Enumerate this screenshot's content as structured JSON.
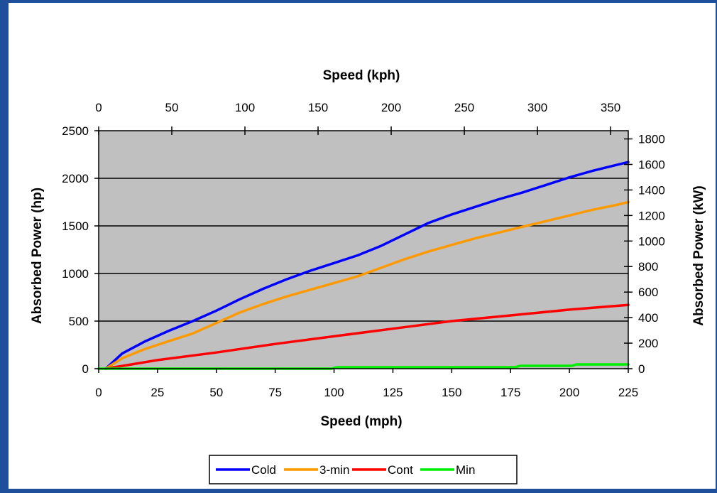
{
  "chart_data": {
    "type": "line",
    "xlabel": "Speed (mph)",
    "x2label": "Speed (kph)",
    "ylabel": "Absorbed Power (hp)",
    "y2label": "Absorbed Power (kW)",
    "xlim": [
      0,
      225
    ],
    "ylim": [
      0,
      2500
    ],
    "x2lim": [
      0,
      362.1
    ],
    "y2lim": [
      0,
      1864.25
    ],
    "xticks": [
      0,
      25,
      50,
      75,
      100,
      125,
      150,
      175,
      200,
      225
    ],
    "yticks": [
      0,
      500,
      1000,
      1500,
      2000,
      2500
    ],
    "x2ticks": [
      0,
      50,
      100,
      150,
      200,
      250,
      300,
      350
    ],
    "y2ticks": [
      0,
      200,
      400,
      600,
      800,
      1000,
      1200,
      1400,
      1600,
      1800
    ],
    "grid": "horizontal",
    "plot_background": "#c0c0c0",
    "legend_position": "bottom",
    "series": [
      {
        "name": "Cold",
        "color": "#0000ff",
        "x": [
          3,
          10,
          20,
          30,
          40,
          50,
          60,
          70,
          80,
          90,
          100,
          110,
          120,
          130,
          140,
          150,
          160,
          170,
          180,
          190,
          200,
          210,
          220,
          225
        ],
        "y": [
          0,
          160,
          290,
          400,
          500,
          610,
          730,
          840,
          940,
          1030,
          1110,
          1190,
          1290,
          1410,
          1530,
          1620,
          1700,
          1780,
          1850,
          1930,
          2010,
          2080,
          2140,
          2170
        ]
      },
      {
        "name": "3-min",
        "color": "#ff9900",
        "x": [
          3,
          10,
          20,
          30,
          40,
          50,
          60,
          70,
          80,
          90,
          100,
          110,
          120,
          130,
          140,
          150,
          160,
          170,
          180,
          190,
          200,
          210,
          220,
          225
        ],
        "y": [
          0,
          110,
          210,
          290,
          370,
          480,
          590,
          680,
          760,
          830,
          900,
          970,
          1060,
          1150,
          1230,
          1300,
          1370,
          1430,
          1490,
          1550,
          1610,
          1670,
          1720,
          1750
        ]
      },
      {
        "name": "Cont",
        "color": "#ff0000",
        "x": [
          3,
          25,
          50,
          75,
          100,
          125,
          150,
          175,
          200,
          225
        ],
        "y": [
          0,
          90,
          170,
          260,
          340,
          420,
          500,
          560,
          620,
          670
        ]
      },
      {
        "name": "Min",
        "color": "#00ee00",
        "x": [
          0,
          99,
          101,
          177,
          179,
          201,
          203,
          225
        ],
        "y": [
          0,
          0,
          15,
          15,
          30,
          30,
          45,
          45
        ]
      }
    ]
  }
}
